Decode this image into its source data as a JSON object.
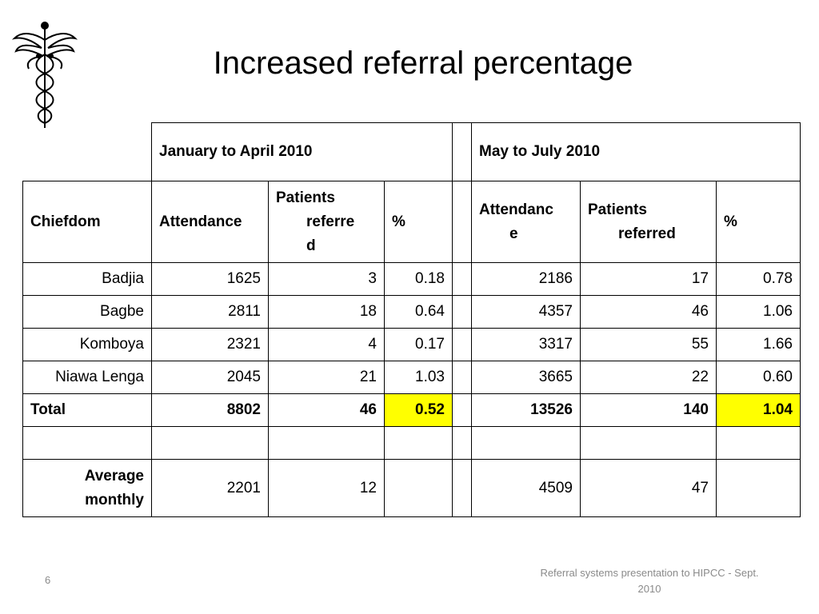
{
  "slide": {
    "title": "Increased referral percentage",
    "page_number": "6",
    "footer": "Referral systems presentation to HIPCC - Sept. 2010",
    "highlight_color": "#ffff00",
    "logo_icon": "caduceus-icon"
  },
  "table": {
    "period1": "January to April 2010",
    "period2": "May to July 2010",
    "columns": {
      "chiefdom": "Chiefdom",
      "attendance1": "Attendance",
      "referred1_a": "Patients",
      "referred1_b": "referre",
      "referred1_c": "d",
      "pct1": "%",
      "attendance2_a": "Attendanc",
      "attendance2_b": "e",
      "referred2_a": "Patients",
      "referred2_b": "referred",
      "pct2": "%"
    },
    "rows": [
      {
        "chiefdom": "Badjia",
        "att1": "1625",
        "ref1": "3",
        "pct1": "0.18",
        "att2": "2186",
        "ref2": "17",
        "pct2": "0.78"
      },
      {
        "chiefdom": "Bagbe",
        "att1": "2811",
        "ref1": "18",
        "pct1": "0.64",
        "att2": "4357",
        "ref2": "46",
        "pct2": "1.06"
      },
      {
        "chiefdom": "Komboya",
        "att1": "2321",
        "ref1": "4",
        "pct1": "0.17",
        "att2": "3317",
        "ref2": "55",
        "pct2": "1.66"
      },
      {
        "chiefdom": "Niawa Lenga",
        "att1": "2045",
        "ref1": "21",
        "pct1": "1.03",
        "att2": "3665",
        "ref2": "22",
        "pct2": "0.60"
      }
    ],
    "total": {
      "label": "Total",
      "att1": "8802",
      "ref1": "46",
      "pct1": "0.52",
      "att2": "13526",
      "ref2": "140",
      "pct2": "1.04"
    },
    "average": {
      "label_a": "Average",
      "label_b": "monthly",
      "att1": "2201",
      "ref1": "12",
      "att2": "4509",
      "ref2": "47"
    }
  }
}
